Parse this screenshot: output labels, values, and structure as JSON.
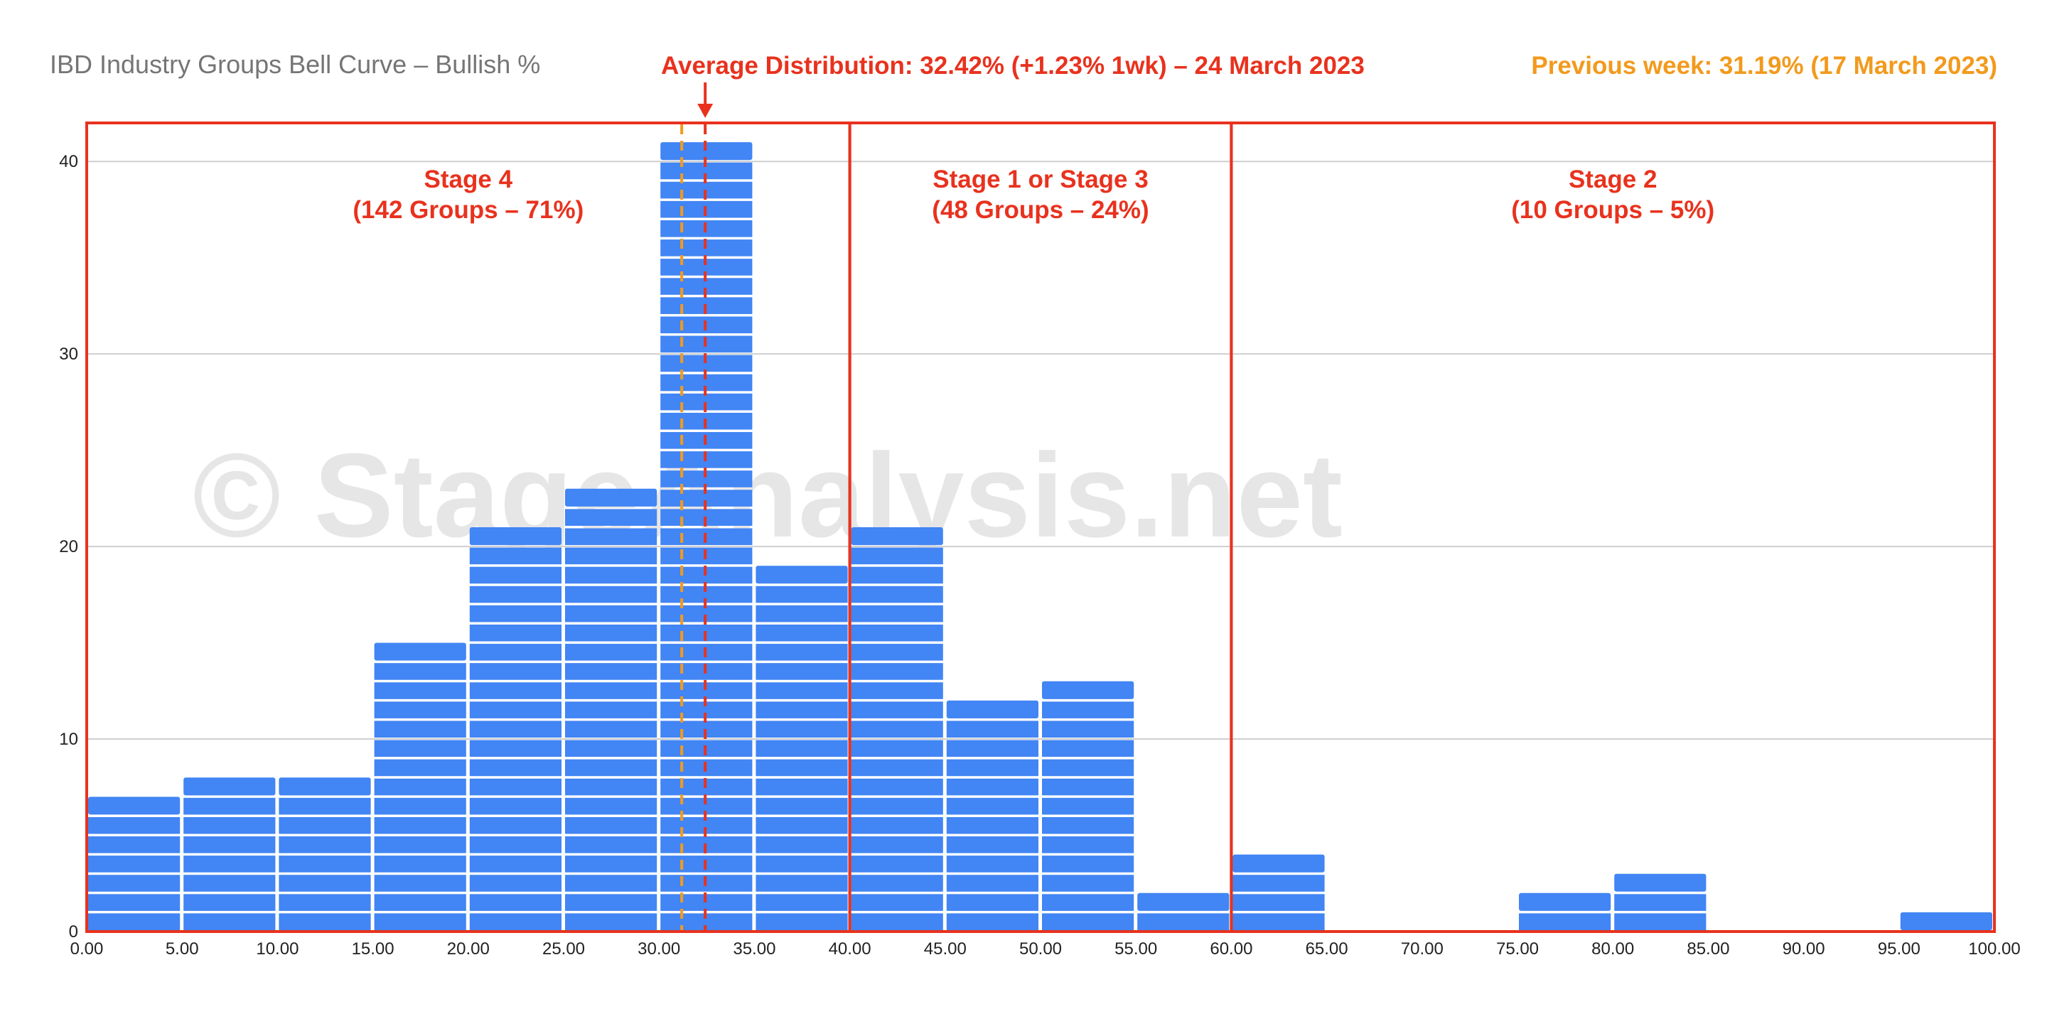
{
  "chart_data": {
    "type": "bar",
    "title": "IBD Industry Groups Bell Curve – Bullish %",
    "xlabel": "",
    "ylabel": "",
    "bin_edges": [
      0,
      5,
      10,
      15,
      20,
      25,
      30,
      35,
      40,
      45,
      50,
      55,
      60,
      65,
      70,
      75,
      80,
      85,
      90,
      95,
      100
    ],
    "x_tick_labels": [
      "0.00",
      "5.00",
      "10.00",
      "15.00",
      "20.00",
      "25.00",
      "30.00",
      "35.00",
      "40.00",
      "45.00",
      "50.00",
      "55.00",
      "60.00",
      "65.00",
      "70.00",
      "75.00",
      "80.00",
      "85.00",
      "90.00",
      "95.00",
      "100.00"
    ],
    "values": [
      7,
      8,
      8,
      15,
      21,
      23,
      41,
      19,
      21,
      12,
      13,
      2,
      4,
      0,
      0,
      2,
      3,
      0,
      0,
      1
    ],
    "bar_color": "#4285f4",
    "xlim": [
      0,
      100
    ],
    "ylim": [
      0,
      42
    ],
    "y_ticks": [
      0,
      10,
      20,
      30,
      40
    ],
    "grid": true,
    "average_line": {
      "value": 32.42,
      "color": "#e8321e"
    },
    "previous_week_line": {
      "value": 31.19,
      "color": "#f29a1d"
    },
    "annotations": {
      "average": "Average Distribution: 32.42% (+1.23% 1wk) – 24 March 2023",
      "previous_week": "Previous week: 31.19% (17 March 2023)"
    },
    "stages": [
      {
        "from": 0,
        "to": 40,
        "line1": "Stage 4",
        "line2": "(142 Groups – 71%)"
      },
      {
        "from": 40,
        "to": 60,
        "line1": "Stage 1 or Stage 3",
        "line2": "(48 Groups – 24%)"
      },
      {
        "from": 60,
        "to": 100,
        "line1": "Stage 2",
        "line2": "(10 Groups – 5%)"
      }
    ],
    "stage_color": "#e8321e",
    "watermark": "© StageAnalysis.net"
  }
}
